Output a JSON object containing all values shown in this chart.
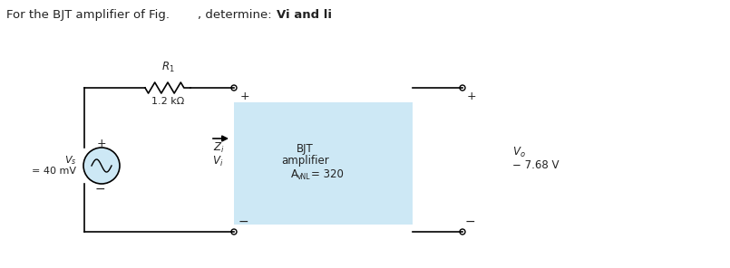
{
  "bg_color": "#ffffff",
  "box_color": "#cde8f5",
  "box_label_line1": "BJT",
  "box_label_line2": "amplifier",
  "box_label_avnl": "A",
  "box_label_avnl_sub": "vNL",
  "box_label_avnl_val": " = 320",
  "Vs_value": "= 40 mV",
  "Vo_label": "V",
  "Vo_sub": "o",
  "Vo_value": "− 7.68 V",
  "R1_value": "1.2 kΩ",
  "line_color": "#000000",
  "text_color": "#222222",
  "src_fill": "#cde8f5",
  "title1": "For the BJT amplifier of Fig.",
  "title2": ", determine:",
  "title3": "Vi and li"
}
